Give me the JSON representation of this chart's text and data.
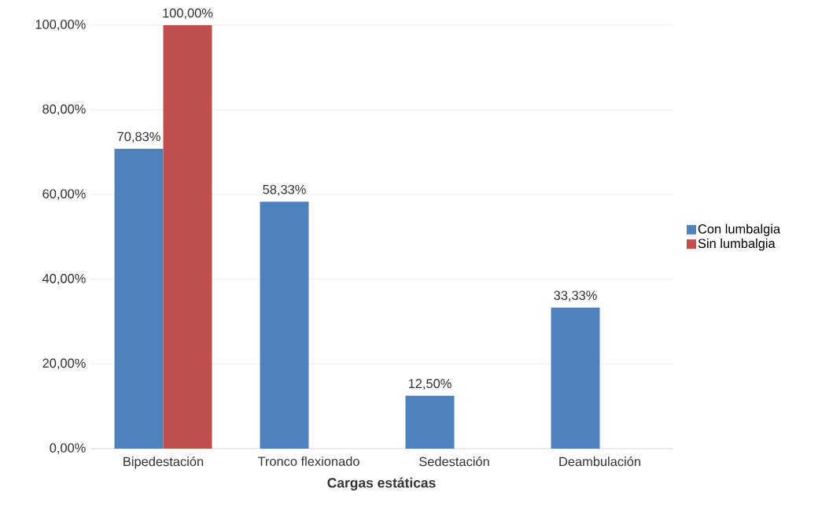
{
  "chart_data": {
    "type": "bar",
    "categories": [
      "Bipedestación",
      "Tronco flexionado",
      "Sedestación",
      "Deambulación"
    ],
    "series": [
      {
        "name": "Con lumbalgia",
        "color": "#4f81bd",
        "values": [
          70.83,
          58.33,
          12.5,
          33.33
        ],
        "value_labels": [
          "70,83%",
          "58,33%",
          "12,50%",
          "33,33%"
        ]
      },
      {
        "name": "Sin lumbalgia",
        "color": "#c0504d",
        "values": [
          100,
          null,
          null,
          null
        ],
        "value_labels": [
          "100,00%",
          null,
          null,
          null
        ]
      }
    ],
    "xlabel": "Cargas estáticas",
    "ylim": [
      0,
      100
    ],
    "yticks": [
      {
        "value": 0,
        "label": "0,00%"
      },
      {
        "value": 20,
        "label": "20,00%"
      },
      {
        "value": 40,
        "label": "40,00%"
      },
      {
        "value": 60,
        "label": "60,00%"
      },
      {
        "value": 80,
        "label": "80,00%"
      },
      {
        "value": 100,
        "label": "100,00%"
      }
    ],
    "grid": "y",
    "legend": "right"
  }
}
